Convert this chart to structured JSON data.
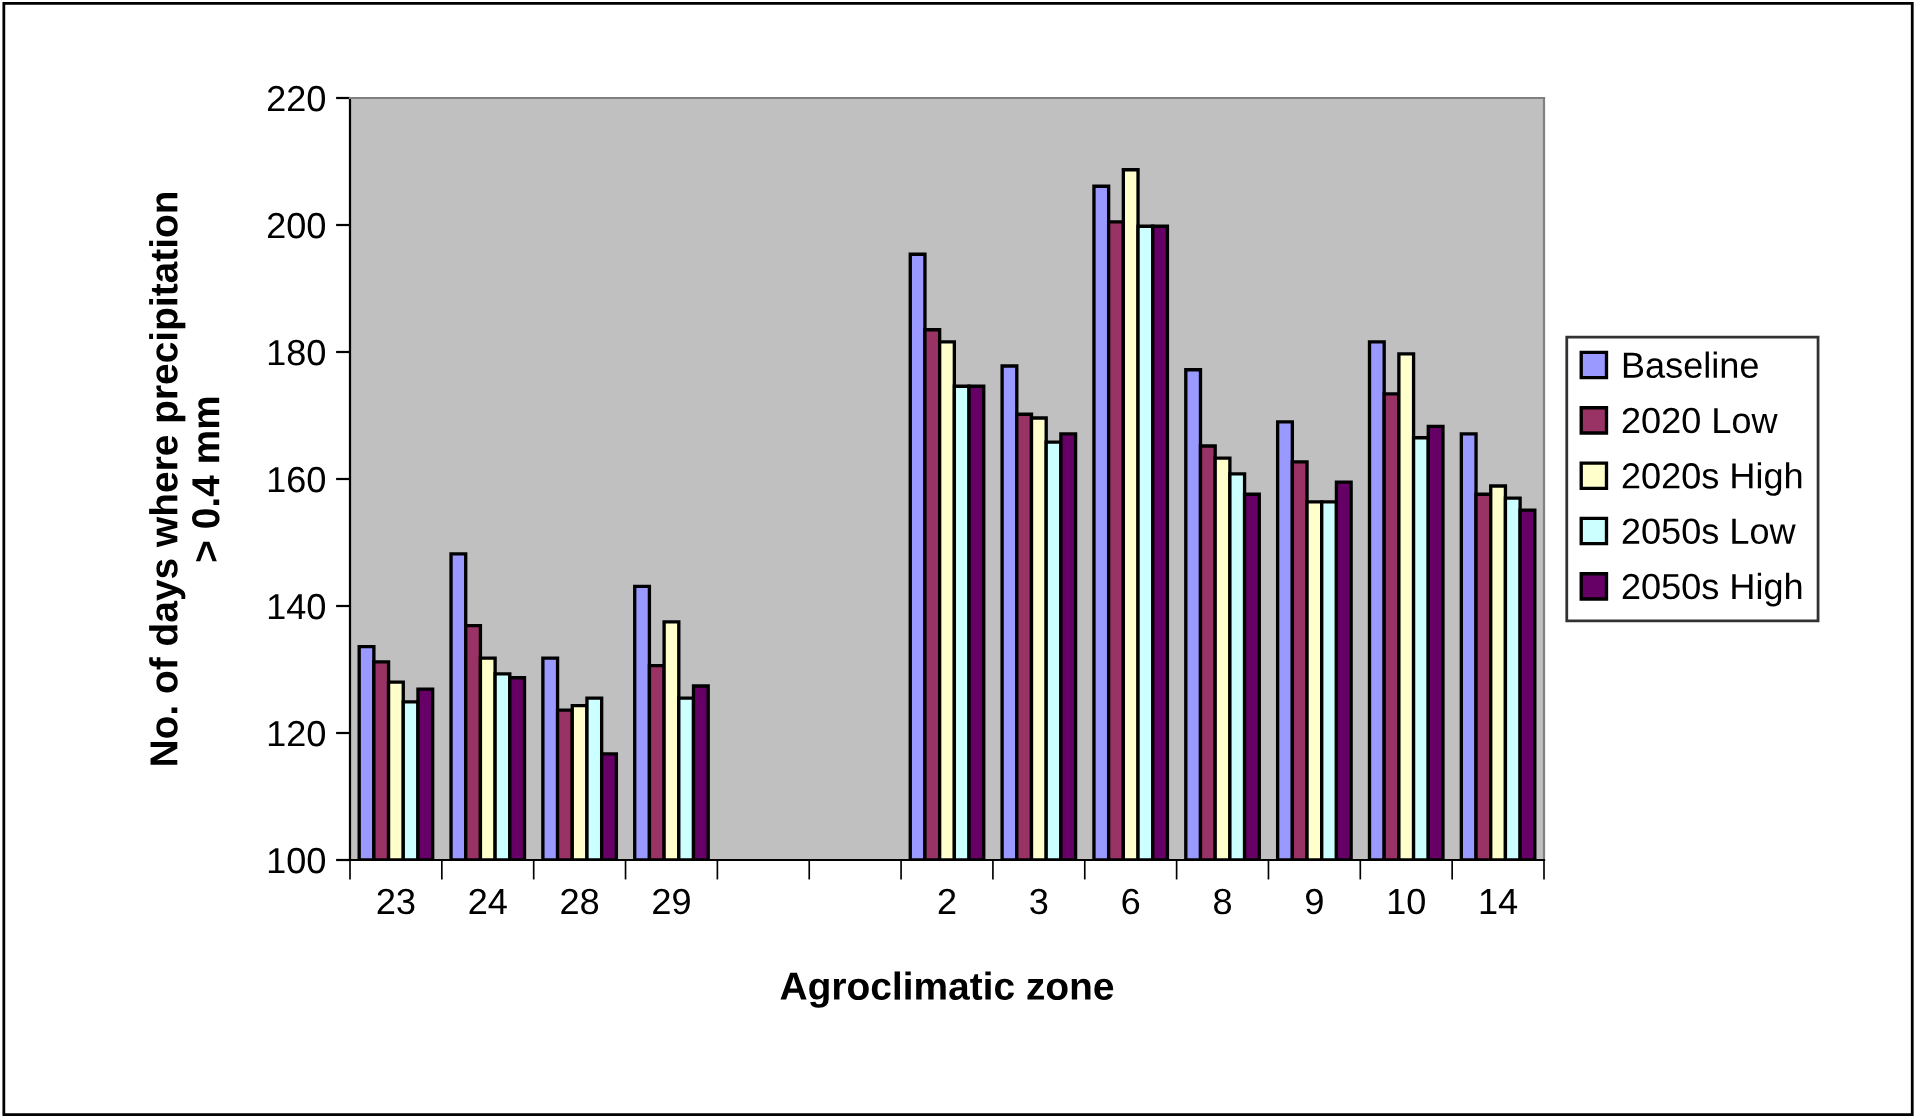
{
  "chart_data": {
    "type": "bar",
    "xlabel": "Agroclimatic zone",
    "ylabel": "No. of days where precipitation\n> 0.4 mm",
    "categories": [
      "23",
      "24",
      "28",
      "29",
      null,
      null,
      "2",
      "3",
      "6",
      "8",
      "9",
      "10",
      "14"
    ],
    "series": [
      {
        "name": "Baseline",
        "color": "#9999ff",
        "values": [
          133.6,
          148.2,
          131.8,
          143.1,
          null,
          null,
          195.4,
          177.8,
          206.1,
          177.2,
          169.0,
          181.6,
          167.1
        ]
      },
      {
        "name": "2020 Low",
        "color": "#993366",
        "values": [
          131.2,
          136.9,
          123.6,
          130.6,
          null,
          null,
          183.5,
          170.2,
          200.5,
          165.2,
          162.7,
          173.4,
          157.6
        ]
      },
      {
        "name": "2020s High",
        "color": "#ffffcc",
        "values": [
          128.0,
          131.8,
          124.3,
          137.5,
          null,
          null,
          181.6,
          169.6,
          208.7,
          163.3,
          156.4,
          179.7,
          158.9
        ]
      },
      {
        "name": "2050s Low",
        "color": "#ccffff",
        "values": [
          124.9,
          129.3,
          125.5,
          125.5,
          null,
          null,
          174.6,
          165.8,
          199.8,
          160.8,
          156.4,
          166.5,
          157.0
        ]
      },
      {
        "name": "2050s High",
        "color": "#660066",
        "values": [
          126.9,
          128.7,
          116.7,
          127.4,
          null,
          null,
          174.6,
          167.1,
          199.8,
          157.6,
          159.5,
          168.3,
          155.1
        ]
      }
    ],
    "ylim": [
      100,
      220
    ],
    "yticks": [
      100,
      120,
      140,
      160,
      180,
      200,
      220
    ],
    "grid": false,
    "legend": "right"
  }
}
